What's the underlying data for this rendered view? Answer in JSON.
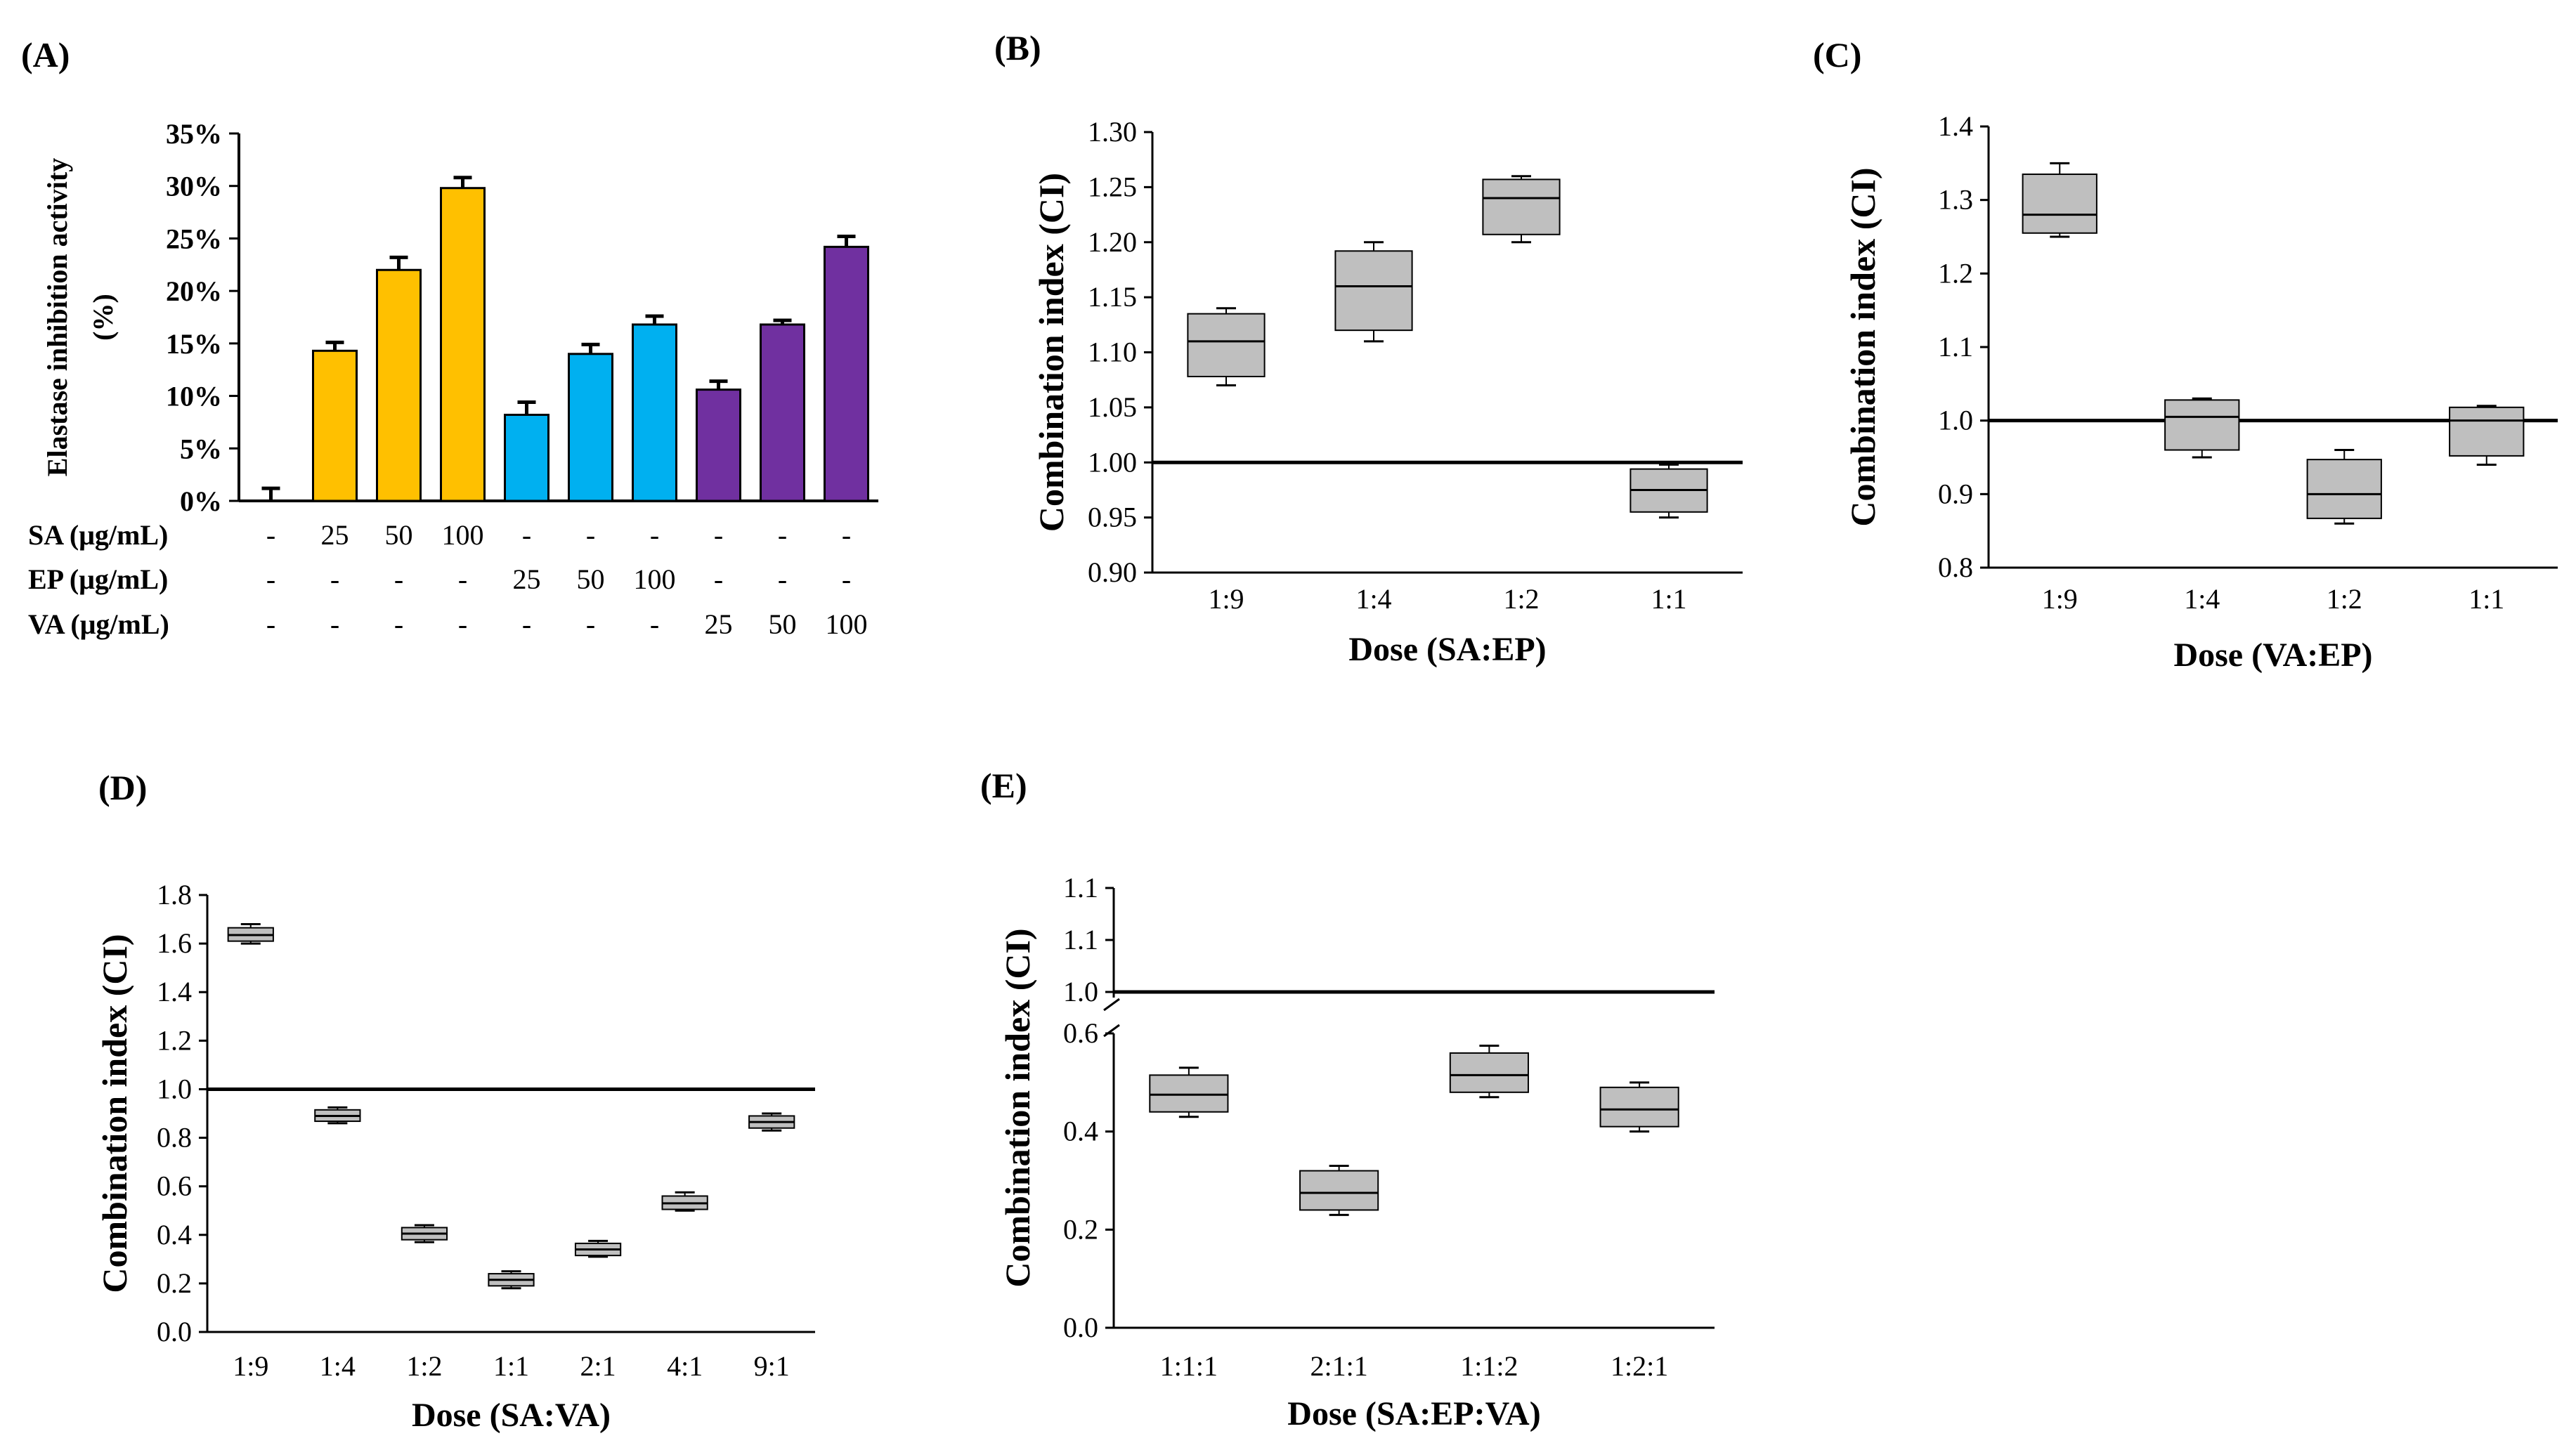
{
  "chart_data": [
    {
      "id": "A",
      "panel_label": "(A)",
      "type": "bar",
      "ylabel_lines": [
        "Elastase inhibition  activity",
        "(%)"
      ],
      "ylim": [
        0,
        35
      ],
      "yticks": [
        "0%",
        "5%",
        "10%",
        "15%",
        "20%",
        "25%",
        "30%",
        "35%"
      ],
      "values": [
        0,
        14.3,
        22.0,
        29.8,
        8.2,
        14.0,
        16.8,
        10.6,
        16.8,
        24.2
      ],
      "errors": [
        1.2,
        0.8,
        1.2,
        1.0,
        1.2,
        0.9,
        0.8,
        0.8,
        0.4,
        1.0
      ],
      "colors": [
        "#ffffff",
        "#FFC000",
        "#FFC000",
        "#FFC000",
        "#00B0F0",
        "#00B0F0",
        "#00B0F0",
        "#7030A0",
        "#7030A0",
        "#7030A0"
      ],
      "condition_rows": [
        {
          "label": "SA (μg/mL)",
          "values": [
            "-",
            "25",
            "50",
            "100",
            "-",
            "-",
            "-",
            "-",
            "-",
            "-"
          ]
        },
        {
          "label": "EP (μg/mL)",
          "values": [
            "-",
            "-",
            "-",
            "-",
            "25",
            "50",
            "100",
            "-",
            "-",
            "-"
          ]
        },
        {
          "label": "VA (μg/mL)",
          "values": [
            "-",
            "-",
            "-",
            "-",
            "-",
            "-",
            "-",
            "25",
            "50",
            "100"
          ]
        }
      ]
    },
    {
      "id": "B",
      "panel_label": "(B)",
      "type": "box",
      "ylabel": "Combination index (CI)",
      "xlabel": "Dose (SA:EP)",
      "ylim": [
        0.9,
        1.3
      ],
      "yticks": [
        "0.90",
        "0.95",
        "1.00",
        "1.05",
        "1.10",
        "1.15",
        "1.20",
        "1.25",
        "1.30"
      ],
      "reference_line": 1.0,
      "categories": [
        "1:9",
        "1:4",
        "1:2",
        "1:1"
      ],
      "boxes": [
        {
          "min": 1.07,
          "q1": 1.078,
          "median": 1.11,
          "q3": 1.135,
          "max": 1.14
        },
        {
          "min": 1.11,
          "q1": 1.12,
          "median": 1.16,
          "q3": 1.192,
          "max": 1.2
        },
        {
          "min": 1.2,
          "q1": 1.207,
          "median": 1.24,
          "q3": 1.257,
          "max": 1.26
        },
        {
          "min": 0.95,
          "q1": 0.955,
          "median": 0.975,
          "q3": 0.994,
          "max": 0.998
        }
      ]
    },
    {
      "id": "C",
      "panel_label": "(C)",
      "type": "box",
      "ylabel": "Combination index (CI)",
      "xlabel": "Dose (VA:EP)",
      "ylim": [
        0.8,
        1.4
      ],
      "yticks": [
        "0.8",
        "0.9",
        "1.0",
        "1.1",
        "1.2",
        "1.3",
        "1.4"
      ],
      "reference_line": 1.0,
      "categories": [
        "1:9",
        "1:4",
        "1:2",
        "1:1"
      ],
      "boxes": [
        {
          "min": 1.25,
          "q1": 1.255,
          "median": 1.28,
          "q3": 1.335,
          "max": 1.35
        },
        {
          "min": 0.95,
          "q1": 0.96,
          "median": 1.005,
          "q3": 1.028,
          "max": 1.03
        },
        {
          "min": 0.86,
          "q1": 0.867,
          "median": 0.9,
          "q3": 0.947,
          "max": 0.96
        },
        {
          "min": 0.94,
          "q1": 0.952,
          "median": 1.0,
          "q3": 1.018,
          "max": 1.02
        }
      ]
    },
    {
      "id": "D",
      "panel_label": "(D)",
      "type": "box",
      "ylabel": "Combination index (CI)",
      "xlabel": "Dose (SA:VA)",
      "ylim": [
        0,
        1.8
      ],
      "yticks": [
        "0.0",
        "0.2",
        "0.4",
        "0.6",
        "0.8",
        "1.0",
        "1.2",
        "1.4",
        "1.6",
        "1.8"
      ],
      "reference_line": 1.0,
      "categories": [
        "1:9",
        "1:4",
        "1:2",
        "1:1",
        "2:1",
        "4:1",
        "9:1"
      ],
      "boxes": [
        {
          "min": 1.6,
          "q1": 1.61,
          "median": 1.635,
          "q3": 1.665,
          "max": 1.68
        },
        {
          "min": 0.86,
          "q1": 0.868,
          "median": 0.89,
          "q3": 0.915,
          "max": 0.925
        },
        {
          "min": 0.37,
          "q1": 0.38,
          "median": 0.405,
          "q3": 0.43,
          "max": 0.44
        },
        {
          "min": 0.18,
          "q1": 0.19,
          "median": 0.215,
          "q3": 0.24,
          "max": 0.25
        },
        {
          "min": 0.31,
          "q1": 0.315,
          "median": 0.34,
          "q3": 0.365,
          "max": 0.375
        },
        {
          "min": 0.5,
          "q1": 0.505,
          "median": 0.53,
          "q3": 0.56,
          "max": 0.575
        },
        {
          "min": 0.83,
          "q1": 0.84,
          "median": 0.865,
          "q3": 0.89,
          "max": 0.9
        }
      ]
    },
    {
      "id": "E",
      "panel_label": "(E)",
      "type": "box",
      "ylabel": "Combination index (CI)",
      "xlabel": "Dose (SA:EP:VA)",
      "ylim": [
        0,
        0.6
      ],
      "yticks": [
        "0.0",
        "0.2",
        "0.4",
        "0.6"
      ],
      "upper_segment_ticks": [
        "1.0",
        "1.1",
        "1.1"
      ],
      "axis_break": true,
      "reference_line": 1.0,
      "categories": [
        "1:1:1",
        "2:1:1",
        "1:1:2",
        "1:2:1"
      ],
      "boxes": [
        {
          "min": 0.43,
          "q1": 0.44,
          "median": 0.475,
          "q3": 0.515,
          "max": 0.53
        },
        {
          "min": 0.23,
          "q1": 0.24,
          "median": 0.275,
          "q3": 0.32,
          "max": 0.33
        },
        {
          "min": 0.47,
          "q1": 0.48,
          "median": 0.515,
          "q3": 0.56,
          "max": 0.575
        },
        {
          "min": 0.4,
          "q1": 0.41,
          "median": 0.445,
          "q3": 0.49,
          "max": 0.5
        }
      ]
    }
  ]
}
